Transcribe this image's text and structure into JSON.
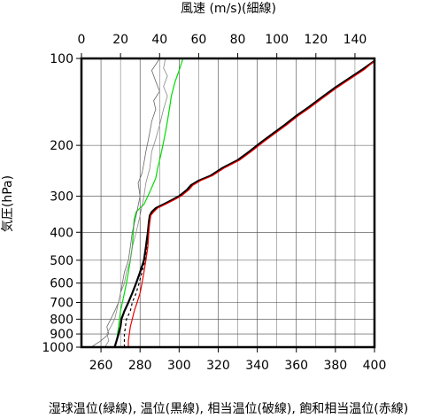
{
  "chart_data": {
    "type": "line",
    "title": "",
    "top_axis": {
      "label": "風速 (m/s)(細線)",
      "range": [
        0,
        150
      ],
      "ticks": [
        0,
        20,
        40,
        60,
        80,
        100,
        120,
        140
      ]
    },
    "bottom_axis": {
      "label": "湿球温位(緑線), 温位(黒線), 相当温位(破線), 飽和相当温位(赤線)",
      "range": [
        250,
        400
      ],
      "ticks": [
        260,
        280,
        300,
        320,
        340,
        360,
        380,
        400
      ]
    },
    "y_axis": {
      "label": "気圧(hPa)",
      "scale": "log",
      "range": [
        1000,
        100
      ],
      "ticks": [
        100,
        200,
        300,
        400,
        500,
        600,
        700,
        800,
        900,
        1000
      ]
    },
    "grid": true,
    "series": [
      {
        "name": "湿球温位",
        "color": "#00dd00",
        "axis": "bottom",
        "points": [
          [
            267,
            1000
          ],
          [
            268,
            950
          ],
          [
            268.5,
            900
          ],
          [
            269,
            850
          ],
          [
            269.5,
            800
          ],
          [
            270,
            750
          ],
          [
            271,
            700
          ],
          [
            272,
            650
          ],
          [
            273,
            600
          ],
          [
            274,
            550
          ],
          [
            275,
            500
          ],
          [
            276,
            450
          ],
          [
            276.5,
            400
          ],
          [
            277,
            360
          ],
          [
            278,
            340
          ],
          [
            280,
            330
          ],
          [
            282,
            320
          ],
          [
            284,
            300
          ],
          [
            286,
            280
          ],
          [
            288,
            260
          ],
          [
            289,
            240
          ],
          [
            290,
            225
          ],
          [
            291,
            210
          ],
          [
            292,
            195
          ],
          [
            293,
            180
          ],
          [
            294,
            165
          ],
          [
            295,
            150
          ],
          [
            296,
            135
          ],
          [
            298,
            120
          ],
          [
            300,
            110
          ],
          [
            302,
            100
          ]
        ]
      },
      {
        "name": "温位",
        "color": "#000000",
        "axis": "bottom",
        "points": [
          [
            267,
            1000
          ],
          [
            268,
            950
          ],
          [
            269,
            900
          ],
          [
            270,
            850
          ],
          [
            270.5,
            800
          ],
          [
            272,
            750
          ],
          [
            274,
            700
          ],
          [
            276,
            650
          ],
          [
            278,
            600
          ],
          [
            280,
            550
          ],
          [
            282,
            500
          ],
          [
            283,
            450
          ],
          [
            284,
            400
          ],
          [
            284.5,
            370
          ],
          [
            285,
            350
          ],
          [
            286,
            340
          ],
          [
            288,
            330
          ],
          [
            292,
            320
          ],
          [
            296,
            310
          ],
          [
            300,
            300
          ],
          [
            304,
            285
          ],
          [
            306,
            275
          ],
          [
            310,
            265
          ],
          [
            316,
            255
          ],
          [
            322,
            240
          ],
          [
            330,
            225
          ],
          [
            336,
            210
          ],
          [
            342,
            195
          ],
          [
            348,
            182
          ],
          [
            354,
            170
          ],
          [
            360,
            158
          ],
          [
            366,
            148
          ],
          [
            372,
            138
          ],
          [
            380,
            126
          ],
          [
            388,
            116
          ],
          [
            394,
            109
          ],
          [
            400,
            102
          ]
        ]
      },
      {
        "name": "相当温位",
        "color": "#000000",
        "axis": "bottom",
        "points": [
          [
            272,
            1000
          ],
          [
            272,
            950
          ],
          [
            272,
            900
          ],
          [
            272.5,
            850
          ],
          [
            273,
            800
          ],
          [
            275,
            750
          ],
          [
            276,
            700
          ],
          [
            278,
            650
          ],
          [
            279.5,
            600
          ],
          [
            281,
            550
          ],
          [
            282.5,
            500
          ],
          [
            283.5,
            450
          ],
          [
            284,
            400
          ],
          [
            284.8,
            370
          ],
          [
            285.3,
            350
          ],
          [
            286.5,
            340
          ],
          [
            288.5,
            330
          ],
          [
            292.5,
            320
          ],
          [
            296.5,
            310
          ],
          [
            300.5,
            300
          ],
          [
            304.5,
            285
          ],
          [
            306.5,
            275
          ],
          [
            310.5,
            265
          ],
          [
            316.5,
            255
          ],
          [
            322.5,
            240
          ],
          [
            330.5,
            225
          ],
          [
            336.5,
            210
          ],
          [
            342.5,
            195
          ],
          [
            348.5,
            182
          ],
          [
            354.5,
            170
          ],
          [
            360.5,
            158
          ],
          [
            366.5,
            148
          ],
          [
            372.5,
            138
          ],
          [
            380.5,
            126
          ],
          [
            388.5,
            116
          ],
          [
            394.5,
            109
          ],
          [
            400,
            102
          ]
        ]
      },
      {
        "name": "飽和相当温位",
        "color": "#ee0000",
        "axis": "bottom",
        "points": [
          [
            274,
            1000
          ],
          [
            274,
            950
          ],
          [
            274.5,
            900
          ],
          [
            275,
            850
          ],
          [
            276,
            800
          ],
          [
            277,
            750
          ],
          [
            278.5,
            700
          ],
          [
            280,
            650
          ],
          [
            281,
            600
          ],
          [
            282,
            550
          ],
          [
            283,
            500
          ],
          [
            284,
            450
          ],
          [
            284.5,
            400
          ],
          [
            285,
            370
          ],
          [
            285.5,
            350
          ],
          [
            287,
            340
          ],
          [
            289,
            330
          ],
          [
            293,
            320
          ],
          [
            297,
            310
          ],
          [
            301,
            300
          ],
          [
            305,
            285
          ],
          [
            307,
            275
          ],
          [
            311,
            265
          ],
          [
            317,
            255
          ],
          [
            323,
            240
          ],
          [
            331,
            225
          ],
          [
            337,
            210
          ],
          [
            343,
            195
          ],
          [
            349,
            182
          ],
          [
            355,
            170
          ],
          [
            361,
            158
          ],
          [
            367,
            148
          ],
          [
            373,
            138
          ],
          [
            381,
            126
          ],
          [
            389,
            116
          ],
          [
            395,
            109
          ],
          [
            400,
            102
          ]
        ]
      },
      {
        "name": "風速",
        "color": "#666666",
        "axis": "top",
        "points": [
          [
            5,
            1000
          ],
          [
            10,
            950
          ],
          [
            14,
            900
          ],
          [
            13,
            850
          ],
          [
            15,
            800
          ],
          [
            17,
            750
          ],
          [
            19,
            700
          ],
          [
            20,
            650
          ],
          [
            21,
            600
          ],
          [
            22,
            550
          ],
          [
            24,
            500
          ],
          [
            25,
            450
          ],
          [
            26,
            400
          ],
          [
            28,
            350
          ],
          [
            30,
            300
          ],
          [
            29,
            270
          ],
          [
            31,
            250
          ],
          [
            32,
            230
          ],
          [
            33,
            210
          ],
          [
            34,
            195
          ],
          [
            35,
            180
          ],
          [
            36,
            165
          ],
          [
            38,
            150
          ],
          [
            37,
            140
          ],
          [
            40,
            130
          ],
          [
            38,
            120
          ],
          [
            36,
            110
          ],
          [
            38,
            105
          ],
          [
            40,
            100
          ]
        ]
      },
      {
        "name": "風速2",
        "color": "#888888",
        "axis": "top",
        "points": [
          [
            12,
            1000
          ],
          [
            14,
            950
          ],
          [
            13,
            900
          ],
          [
            15,
            850
          ],
          [
            17,
            800
          ],
          [
            18,
            750
          ],
          [
            19,
            700
          ],
          [
            20,
            650
          ],
          [
            22,
            600
          ],
          [
            23,
            550
          ],
          [
            25,
            500
          ],
          [
            26,
            450
          ],
          [
            28,
            400
          ],
          [
            30,
            350
          ],
          [
            32,
            300
          ],
          [
            33,
            270
          ],
          [
            35,
            240
          ],
          [
            36,
            210
          ],
          [
            38,
            190
          ],
          [
            40,
            170
          ],
          [
            42,
            150
          ],
          [
            44,
            135
          ],
          [
            42,
            125
          ],
          [
            44,
            115
          ],
          [
            42,
            108
          ],
          [
            43,
            100
          ]
        ]
      }
    ]
  }
}
